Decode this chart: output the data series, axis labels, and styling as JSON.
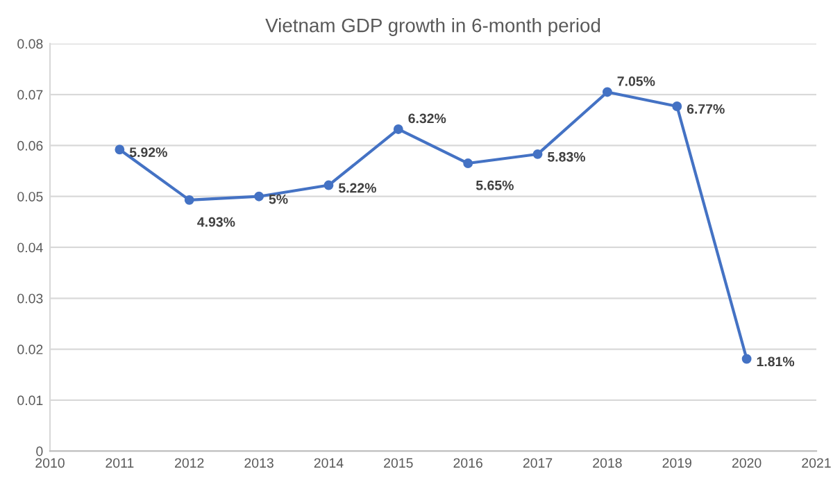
{
  "chart_data": {
    "type": "line",
    "title": "Vietnam GDP growth in 6-month period",
    "x": [
      2011,
      2012,
      2013,
      2014,
      2015,
      2016,
      2017,
      2018,
      2019,
      2020
    ],
    "series": [
      {
        "color": "#4472c4",
        "values": [
          0.0592,
          0.0493,
          0.05,
          0.0522,
          0.0632,
          0.0565,
          0.0583,
          0.0705,
          0.0677,
          0.0181
        ],
        "value_labels": [
          "5.92%",
          "4.93%",
          "5%",
          "5.22%",
          "6.32%",
          "5.65%",
          "5.83%",
          "7.05%",
          "6.77%",
          "1.81%"
        ]
      }
    ],
    "xlim": [
      2010,
      2021
    ],
    "xticks": [
      2010,
      2011,
      2012,
      2013,
      2014,
      2015,
      2016,
      2017,
      2018,
      2019,
      2020,
      2021
    ],
    "ylim": [
      0,
      0.08
    ],
    "yticks": [
      0,
      0.01,
      0.02,
      0.03,
      0.04,
      0.05,
      0.06,
      0.07,
      0.08
    ],
    "grid": "y",
    "marker": "circle",
    "line_style": "solid",
    "legend": false
  }
}
